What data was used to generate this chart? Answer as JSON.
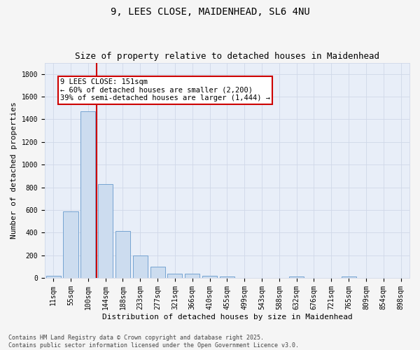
{
  "title_line1": "9, LEES CLOSE, MAIDENHEAD, SL6 4NU",
  "title_line2": "Size of property relative to detached houses in Maidenhead",
  "xlabel": "Distribution of detached houses by size in Maidenhead",
  "ylabel": "Number of detached properties",
  "categories": [
    "11sqm",
    "55sqm",
    "100sqm",
    "144sqm",
    "188sqm",
    "233sqm",
    "277sqm",
    "321sqm",
    "366sqm",
    "410sqm",
    "455sqm",
    "499sqm",
    "543sqm",
    "588sqm",
    "632sqm",
    "676sqm",
    "721sqm",
    "765sqm",
    "809sqm",
    "854sqm",
    "898sqm"
  ],
  "bar_values": [
    20,
    585,
    1470,
    830,
    415,
    200,
    100,
    40,
    35,
    20,
    10,
    0,
    0,
    0,
    15,
    0,
    0,
    10,
    0,
    0,
    0
  ],
  "bar_color": "#ccdcef",
  "bar_edge_color": "#6699cc",
  "grid_color": "#d0d8e8",
  "bg_color": "#e8eef8",
  "annotation_text": "9 LEES CLOSE: 151sqm\n← 60% of detached houses are smaller (2,200)\n39% of semi-detached houses are larger (1,444) →",
  "annotation_box_color": "#ffffff",
  "annotation_box_edge_color": "#cc0000",
  "vline_x_index": 2.5,
  "vline_color": "#cc0000",
  "ylim": [
    0,
    1900
  ],
  "yticks": [
    0,
    200,
    400,
    600,
    800,
    1000,
    1200,
    1400,
    1600,
    1800
  ],
  "footnote": "Contains HM Land Registry data © Crown copyright and database right 2025.\nContains public sector information licensed under the Open Government Licence v3.0.",
  "title_fontsize": 10,
  "subtitle_fontsize": 9,
  "axis_label_fontsize": 8,
  "tick_fontsize": 7,
  "annotation_fontsize": 7.5,
  "footnote_fontsize": 6
}
